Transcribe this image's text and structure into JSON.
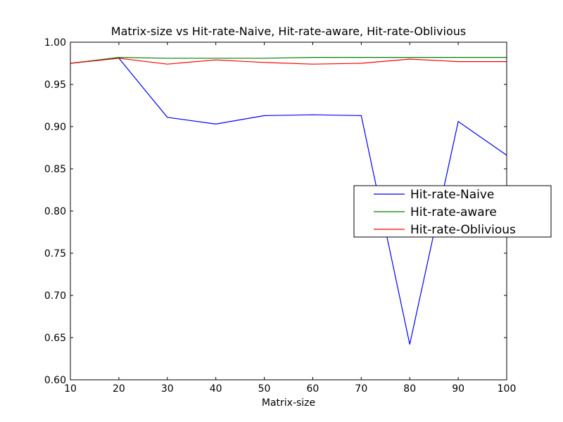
{
  "chart_data": {
    "type": "line",
    "title": "Matrix-size vs Hit-rate-Naive, Hit-rate-aware, Hit-rate-Oblivious",
    "xlabel": "Matrix-size",
    "ylabel": "",
    "xlim": [
      10,
      100
    ],
    "ylim": [
      0.6,
      1.0
    ],
    "xticks": [
      10,
      20,
      30,
      40,
      50,
      60,
      70,
      80,
      90,
      100
    ],
    "xtick_labels": [
      "10",
      "20",
      "30",
      "40",
      "50",
      "60",
      "70",
      "80",
      "90",
      "100"
    ],
    "yticks": [
      0.6,
      0.65,
      0.7,
      0.75,
      0.8,
      0.85,
      0.9,
      0.95,
      1.0
    ],
    "ytick_labels": [
      "0.60",
      "0.65",
      "0.70",
      "0.75",
      "0.80",
      "0.85",
      "0.90",
      "0.95",
      "1.00"
    ],
    "grid": false,
    "legend_position": "center-right",
    "x": [
      10,
      20,
      30,
      40,
      50,
      60,
      70,
      80,
      90,
      100
    ],
    "series": [
      {
        "name": "Hit-rate-Naive",
        "color": "#0000ff",
        "values": [
          0.975,
          0.981,
          0.911,
          0.903,
          0.913,
          0.914,
          0.913,
          0.642,
          0.906,
          0.866
        ]
      },
      {
        "name": "Hit-rate-aware",
        "color": "#008000",
        "values": [
          0.975,
          0.982,
          0.981,
          0.981,
          0.981,
          0.982,
          0.982,
          0.982,
          0.982,
          0.982
        ]
      },
      {
        "name": "Hit-rate-Oblivious",
        "color": "#ff0000",
        "values": [
          0.975,
          0.981,
          0.974,
          0.979,
          0.976,
          0.974,
          0.975,
          0.98,
          0.977,
          0.977
        ]
      }
    ]
  }
}
